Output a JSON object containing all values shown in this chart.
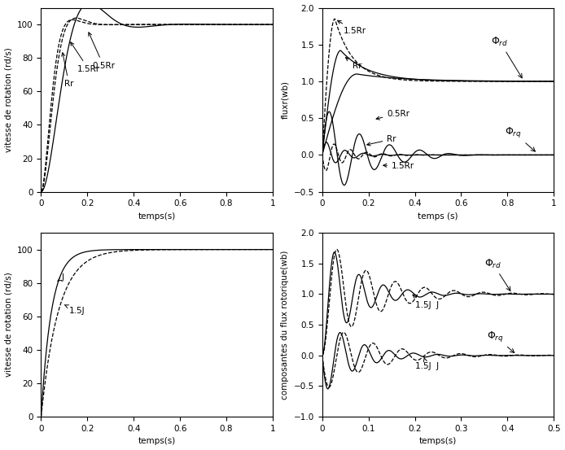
{
  "bg_color": "#ffffff",
  "top_left": {
    "xlabel": "temps(s)",
    "ylabel": "vitesse de rotation (rd/s)",
    "xlim": [
      0,
      1
    ],
    "ylim": [
      0,
      110
    ],
    "yticks": [
      0,
      20,
      40,
      60,
      80,
      100
    ],
    "xticks": [
      0,
      0.2,
      0.4,
      0.6,
      0.8,
      1.0
    ],
    "xticklabels": [
      "0",
      "0.2",
      "0.4",
      "0.6",
      "0.8",
      "1"
    ]
  },
  "top_right": {
    "xlabel": "temps (s)",
    "ylabel": "fluxr(wb)",
    "xlim": [
      0,
      1
    ],
    "ylim": [
      -0.5,
      2.0
    ],
    "yticks": [
      -0.5,
      0.0,
      0.5,
      1.0,
      1.5,
      2.0
    ],
    "xticks": [
      0,
      0.2,
      0.4,
      0.6,
      0.8,
      1.0
    ],
    "xticklabels": [
      "0",
      "0.2",
      "0.4",
      "0.6",
      "0.8",
      "1"
    ]
  },
  "bot_left": {
    "xlabel": "temps(s)",
    "ylabel": "vitesse de rotation (rd/s)",
    "xlim": [
      0,
      1
    ],
    "ylim": [
      0,
      110
    ],
    "yticks": [
      0,
      20,
      40,
      60,
      80,
      100
    ],
    "xticks": [
      0,
      0.2,
      0.4,
      0.6,
      0.8,
      1.0
    ],
    "xticklabels": [
      "0",
      "0.2",
      "0.4",
      "0.6",
      "0.8",
      "1"
    ]
  },
  "bot_right": {
    "xlabel": "temps(s)",
    "ylabel": "composantes du flux rotorique(wb)",
    "xlim": [
      0,
      0.5
    ],
    "ylim": [
      -1.0,
      2.0
    ],
    "yticks": [
      -1.0,
      -0.5,
      0.0,
      0.5,
      1.0,
      1.5,
      2.0
    ],
    "xticks": [
      0,
      0.1,
      0.2,
      0.3,
      0.4,
      0.5
    ],
    "xticklabels": [
      "0",
      "0.1",
      "0.2",
      "0.3",
      "0.4",
      "0.5"
    ]
  }
}
